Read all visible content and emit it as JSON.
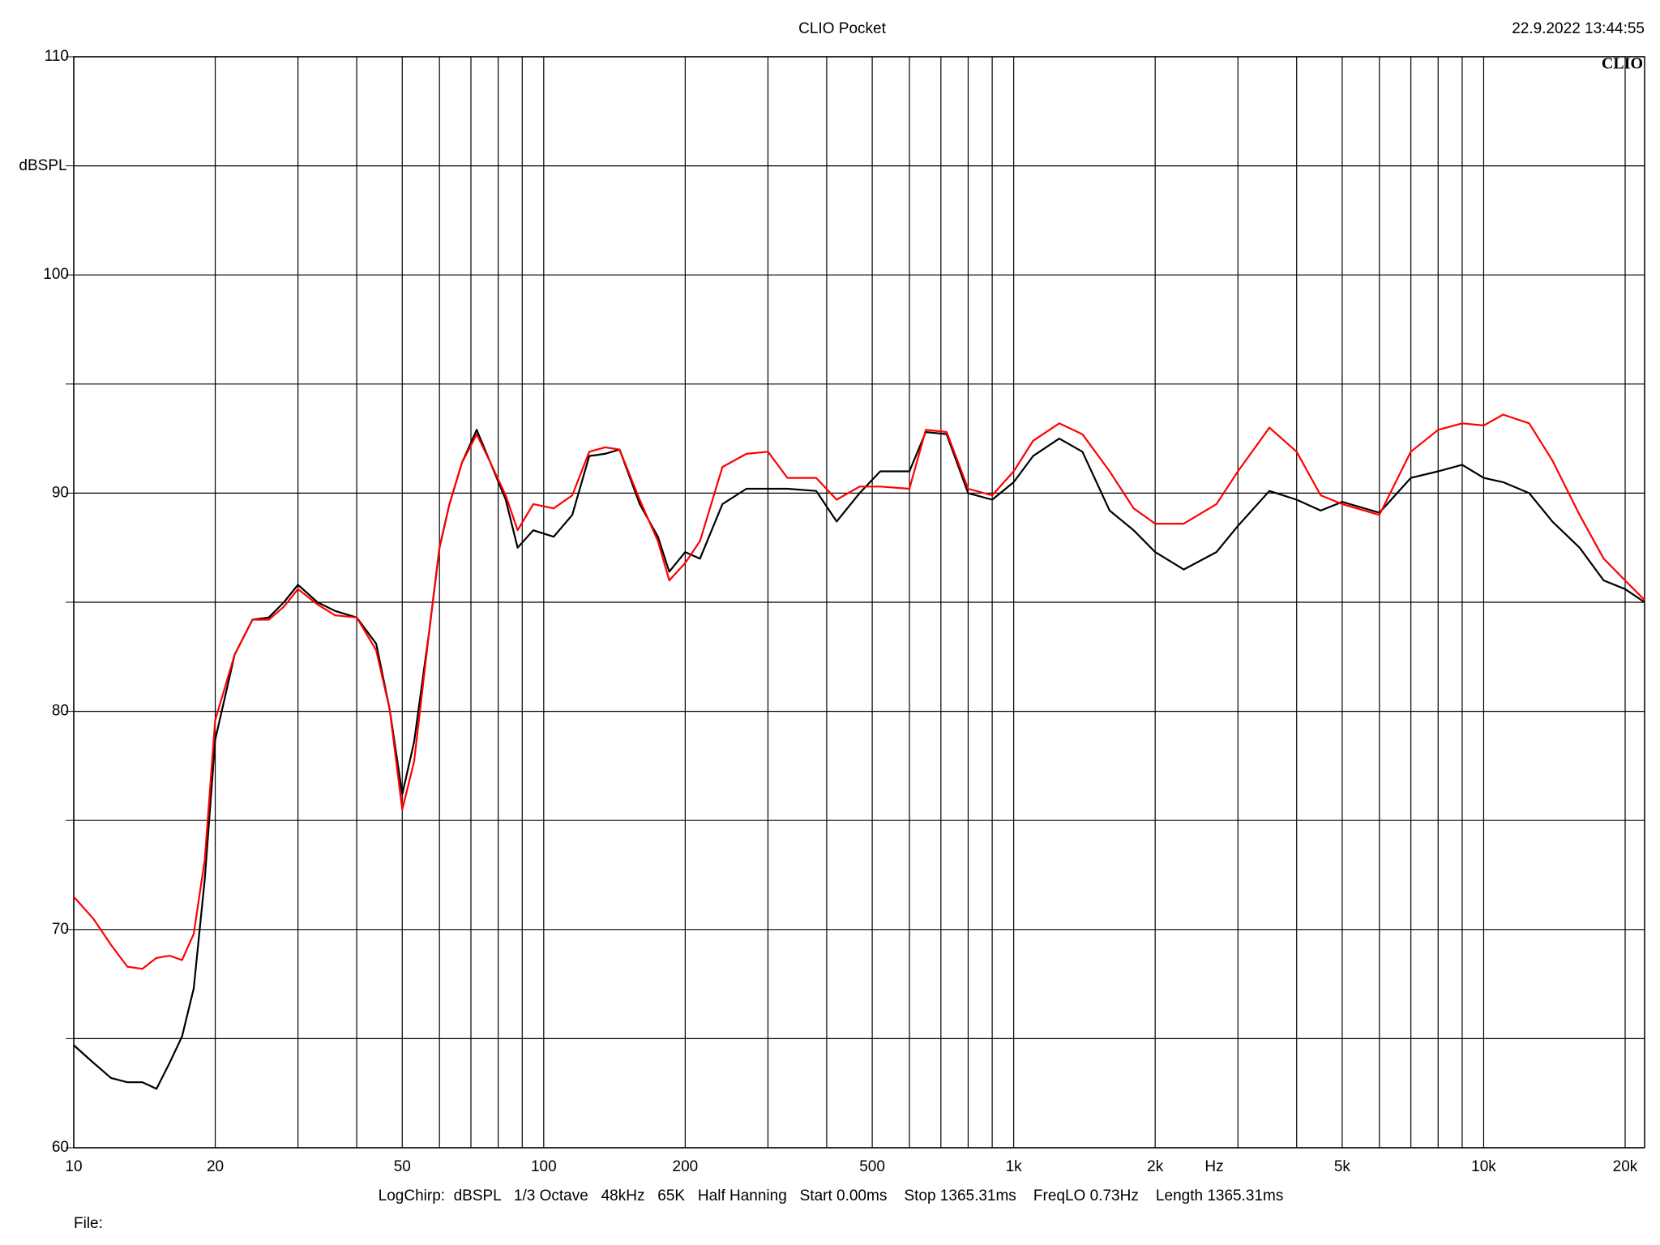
{
  "chart_data": {
    "type": "line",
    "title": "CLIO Pocket",
    "timestamp": "22.9.2022 13:44:55",
    "logo": "CLIO",
    "ylabel": "dBSPL",
    "xlabel": "Hz",
    "footer": "LogChirp:  dBSPL   1/3 Octave   48kHz   65K   Half Hanning   Start 0.00ms    Stop 1365.31ms    FreqLO 0.73Hz    Length 1365.31ms",
    "file_label": "File:",
    "xscale": "log",
    "grid": true,
    "xlim": [
      10,
      22000
    ],
    "ylim": [
      60,
      110
    ],
    "xticks": [
      10,
      20,
      {
        "value": 30,
        "label": null
      },
      {
        "value": 40,
        "label": null
      },
      50,
      {
        "value": 60,
        "label": null
      },
      {
        "value": 70,
        "label": null
      },
      {
        "value": 80,
        "label": null
      },
      {
        "value": 90,
        "label": null
      },
      100,
      200,
      {
        "value": 300,
        "label": null
      },
      {
        "value": 400,
        "label": null
      },
      500,
      {
        "value": 600,
        "label": null
      },
      {
        "value": 700,
        "label": null
      },
      {
        "value": 800,
        "label": null
      },
      {
        "value": 900,
        "label": null
      },
      {
        "value": 1000,
        "label": "1k"
      },
      {
        "value": 2000,
        "label": "2k"
      },
      {
        "value": 3000,
        "label": null
      },
      {
        "value": 4000,
        "label": null
      },
      {
        "value": 5000,
        "label": "5k"
      },
      {
        "value": 6000,
        "label": null
      },
      {
        "value": 7000,
        "label": null
      },
      {
        "value": 8000,
        "label": null
      },
      {
        "value": 9000,
        "label": null
      },
      {
        "value": 10000,
        "label": "10k"
      },
      {
        "value": 20000,
        "label": "20k"
      }
    ],
    "yticks": [
      60,
      {
        "value": 65,
        "label": null
      },
      70,
      {
        "value": 75,
        "label": null
      },
      80,
      {
        "value": 85,
        "label": null
      },
      90,
      {
        "value": 95,
        "label": null
      },
      100,
      {
        "value": 105,
        "label": null
      },
      110
    ],
    "x": [
      10,
      11,
      12,
      13,
      14,
      15,
      16,
      17,
      18,
      19,
      20,
      22,
      24,
      26,
      28,
      30,
      33,
      36,
      40,
      44,
      47,
      50,
      53,
      57,
      60,
      63,
      67,
      72,
      77,
      83,
      88,
      95,
      105,
      115,
      125,
      135,
      145,
      160,
      175,
      185,
      200,
      215,
      240,
      270,
      300,
      330,
      380,
      420,
      470,
      520,
      600,
      650,
      720,
      800,
      900,
      1000,
      1100,
      1250,
      1400,
      1600,
      1800,
      2000,
      2300,
      2700,
      3000,
      3500,
      4000,
      4500,
      5000,
      6000,
      7000,
      8000,
      9000,
      10000,
      11000,
      12500,
      14000,
      16000,
      18000,
      20000,
      22000
    ],
    "series": [
      {
        "color": "#000000",
        "values": [
          64.7,
          63.9,
          63.2,
          63.0,
          63.0,
          62.7,
          63.9,
          65.1,
          67.3,
          72.3,
          78.7,
          82.6,
          84.2,
          84.3,
          85.0,
          85.8,
          85.0,
          84.6,
          84.3,
          83.1,
          80.1,
          76.2,
          78.6,
          83.6,
          87.5,
          89.5,
          91.4,
          92.9,
          91.4,
          89.7,
          87.5,
          88.3,
          88.0,
          89.0,
          91.7,
          91.8,
          92.0,
          89.5,
          88.0,
          86.4,
          87.3,
          87.0,
          89.5,
          90.2,
          90.2,
          90.2,
          90.1,
          88.7,
          90.0,
          91.0,
          91.0,
          92.8,
          92.7,
          90.0,
          89.7,
          90.5,
          91.7,
          92.5,
          91.9,
          89.2,
          88.3,
          87.3,
          86.5,
          87.3,
          88.5,
          90.1,
          89.7,
          89.2,
          89.6,
          89.1,
          90.7,
          91.0,
          91.3,
          90.7,
          90.5,
          90.0,
          88.7,
          87.5,
          86.0,
          85.6,
          85.0
        ]
      },
      {
        "color": "#ff0000",
        "values": [
          71.5,
          70.5,
          69.3,
          68.3,
          68.2,
          68.7,
          68.8,
          68.6,
          69.8,
          73.2,
          79.6,
          82.6,
          84.2,
          84.2,
          84.8,
          85.6,
          84.9,
          84.4,
          84.3,
          82.8,
          80.1,
          75.5,
          77.7,
          83.6,
          87.5,
          89.5,
          91.4,
          92.7,
          91.4,
          89.9,
          88.3,
          89.5,
          89.3,
          89.9,
          91.9,
          92.1,
          92.0,
          89.7,
          87.8,
          86.0,
          86.8,
          87.8,
          91.2,
          91.8,
          91.9,
          90.7,
          90.7,
          89.7,
          90.3,
          90.3,
          90.2,
          92.9,
          92.8,
          90.2,
          89.9,
          91.0,
          92.4,
          93.2,
          92.7,
          91.0,
          89.3,
          88.6,
          88.6,
          89.5,
          91.0,
          93.0,
          91.9,
          89.9,
          89.5,
          89.0,
          91.9,
          92.9,
          93.2,
          93.1,
          93.6,
          93.2,
          91.5,
          89.0,
          87.0,
          86.0,
          85.1
        ]
      }
    ]
  }
}
